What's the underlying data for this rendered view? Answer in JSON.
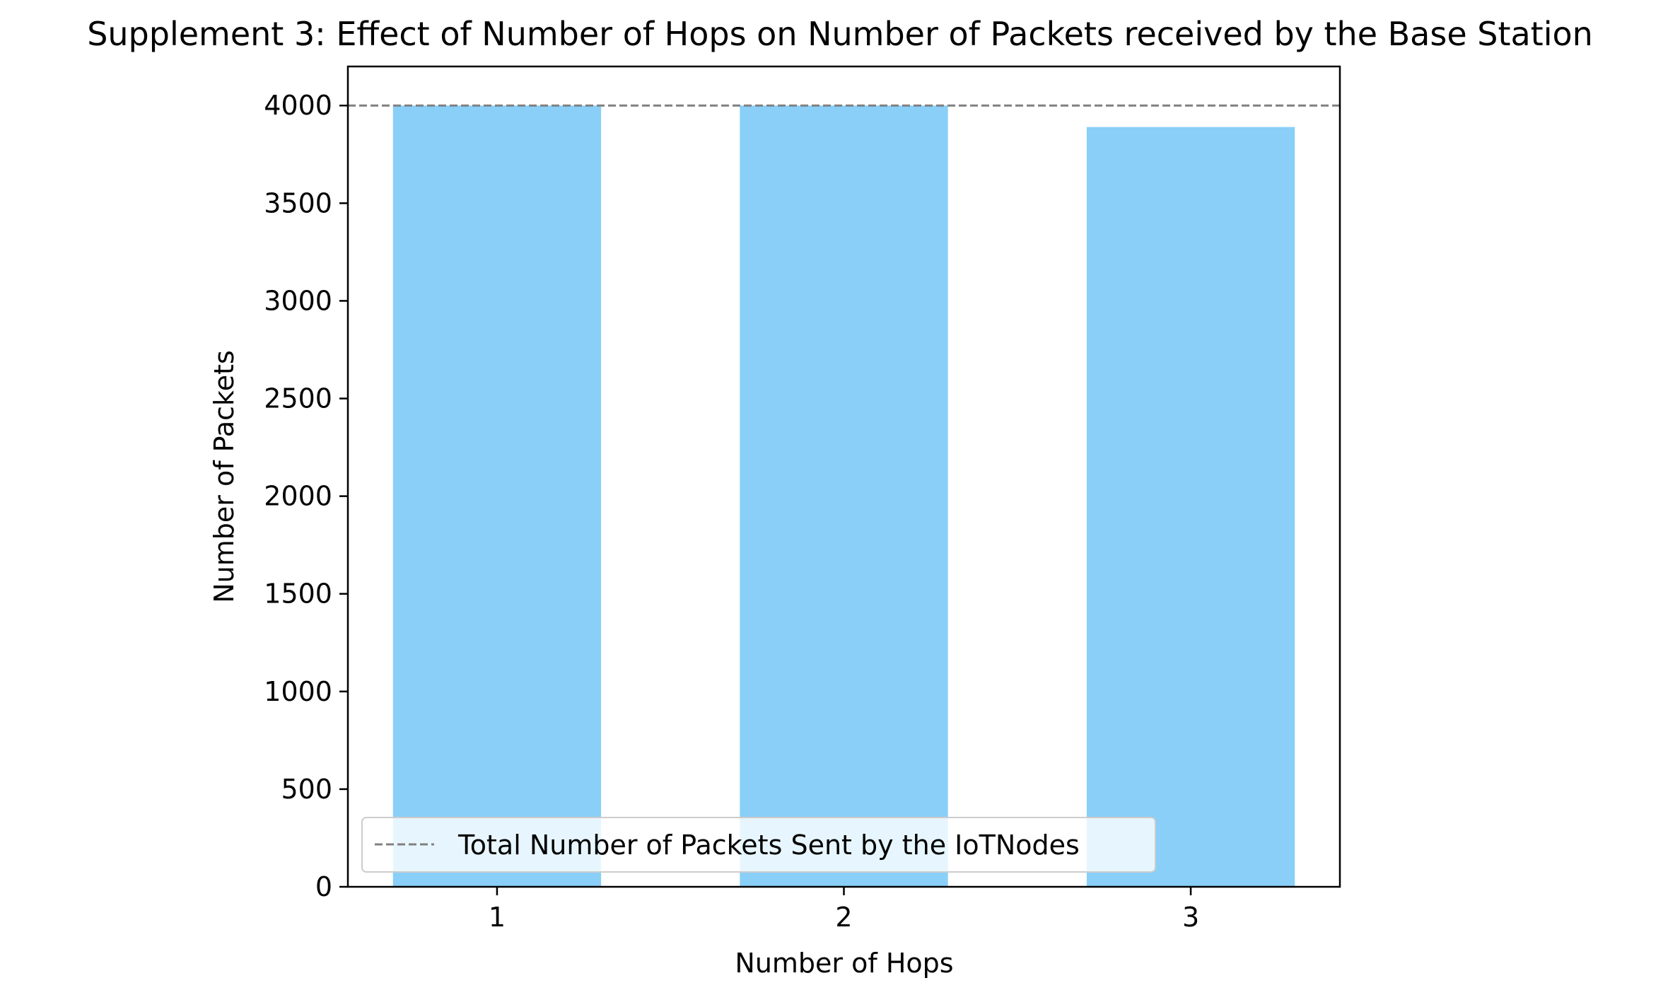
{
  "chart_data": {
    "type": "bar",
    "title": "Supplement 3: Effect of Number of Hops on Number of Packets received by the Base Station",
    "xlabel": "Number of Hops",
    "ylabel": "Number of Packets",
    "categories": [
      "1",
      "2",
      "3"
    ],
    "values": [
      4000,
      4000,
      3890
    ],
    "bar_color": "#89CFF8",
    "ylim": [
      0,
      4200
    ],
    "yticks": [
      0,
      500,
      1000,
      1500,
      2000,
      2500,
      3000,
      3500,
      4000
    ],
    "reference_line": {
      "value": 4000,
      "style": "dashed",
      "color": "#808080",
      "label": "Total Number of Packets Sent by the IoTNodes"
    },
    "legend": {
      "position": "lower-left"
    },
    "grid": false
  }
}
